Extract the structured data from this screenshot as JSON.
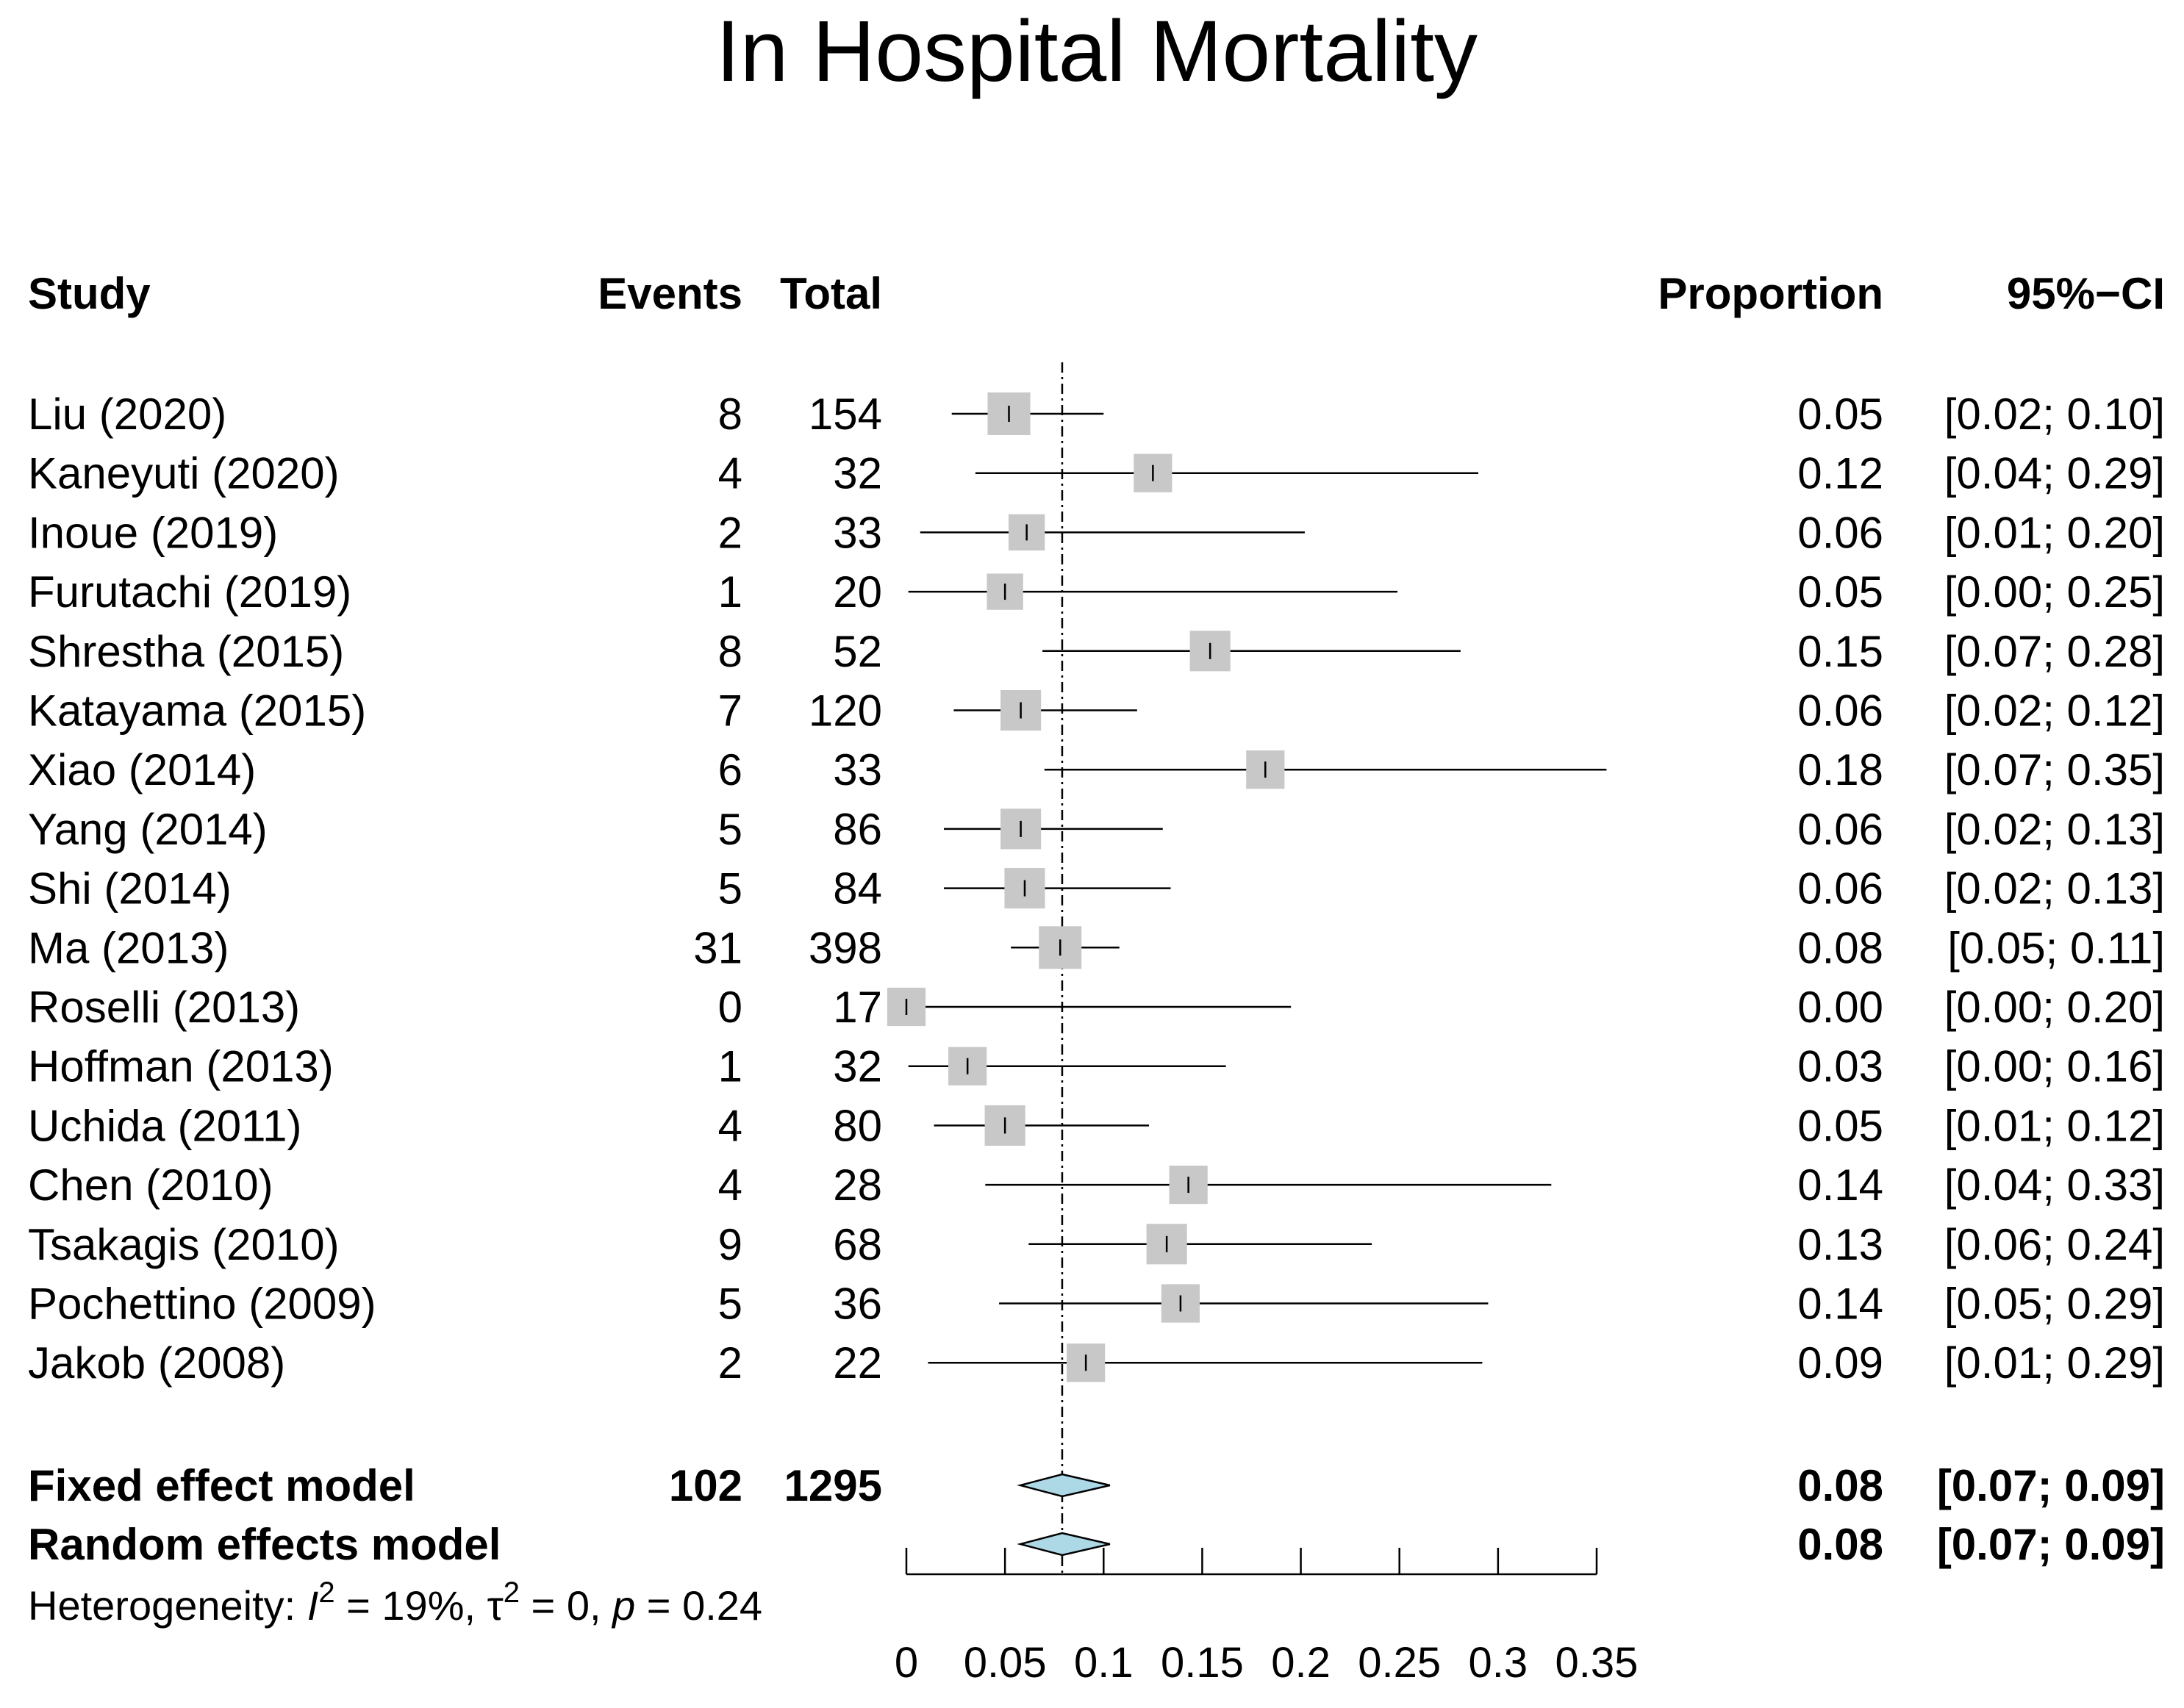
{
  "chart_data": {
    "type": "forest",
    "title": "In Hospital Mortality",
    "headers": {
      "study": "Study",
      "events": "Events",
      "total": "Total",
      "proportion": "Proportion",
      "ci": "95%−CI"
    },
    "studies": [
      {
        "study": "Liu (2020)",
        "events": "8",
        "total": "154",
        "proportion": "0.05",
        "ci_text": "[0.02; 0.10]",
        "est": 0.052,
        "lo": 0.023,
        "hi": 0.1,
        "weight": 1.0
      },
      {
        "study": "Kaneyuti (2020)",
        "events": "4",
        "total": "32",
        "proportion": "0.12",
        "ci_text": "[0.04; 0.29]",
        "est": 0.125,
        "lo": 0.035,
        "hi": 0.29,
        "weight": 0.9
      },
      {
        "study": "Inoue (2019)",
        "events": "2",
        "total": "33",
        "proportion": "0.06",
        "ci_text": "[0.01; 0.20]",
        "est": 0.061,
        "lo": 0.007,
        "hi": 0.202,
        "weight": 0.85
      },
      {
        "study": "Furutachi (2019)",
        "events": "1",
        "total": "20",
        "proportion": "0.05",
        "ci_text": "[0.00; 0.25]",
        "est": 0.05,
        "lo": 0.001,
        "hi": 0.249,
        "weight": 0.85
      },
      {
        "study": "Shrestha (2015)",
        "events": "8",
        "total": "52",
        "proportion": "0.15",
        "ci_text": "[0.07; 0.28]",
        "est": 0.154,
        "lo": 0.069,
        "hi": 0.281,
        "weight": 0.95
      },
      {
        "study": "Katayama (2015)",
        "events": "7",
        "total": "120",
        "proportion": "0.06",
        "ci_text": "[0.02; 0.12]",
        "est": 0.058,
        "lo": 0.024,
        "hi": 0.117,
        "weight": 0.95
      },
      {
        "study": "Xiao (2014)",
        "events": "6",
        "total": "33",
        "proportion": "0.18",
        "ci_text": "[0.07; 0.35]",
        "est": 0.182,
        "lo": 0.07,
        "hi": 0.355,
        "weight": 0.9
      },
      {
        "study": "Yang (2014)",
        "events": "5",
        "total": "86",
        "proportion": "0.06",
        "ci_text": "[0.02; 0.13]",
        "est": 0.058,
        "lo": 0.019,
        "hi": 0.13,
        "weight": 0.95
      },
      {
        "study": "Shi (2014)",
        "events": "5",
        "total": "84",
        "proportion": "0.06",
        "ci_text": "[0.02; 0.13]",
        "est": 0.06,
        "lo": 0.019,
        "hi": 0.134,
        "weight": 0.95
      },
      {
        "study": "Ma (2013)",
        "events": "31",
        "total": "398",
        "proportion": "0.08",
        "ci_text": "[0.05; 0.11]",
        "est": 0.078,
        "lo": 0.053,
        "hi": 0.108,
        "weight": 1.0
      },
      {
        "study": "Roselli (2013)",
        "events": "0",
        "total": "17",
        "proportion": "0.00",
        "ci_text": "[0.00; 0.20]",
        "est": 0.0,
        "lo": 0.0,
        "hi": 0.195,
        "weight": 0.9
      },
      {
        "study": "Hoffman (2013)",
        "events": "1",
        "total": "32",
        "proportion": "0.03",
        "ci_text": "[0.00; 0.16]",
        "est": 0.031,
        "lo": 0.001,
        "hi": 0.162,
        "weight": 0.9
      },
      {
        "study": "Uchida (2011)",
        "events": "4",
        "total": "80",
        "proportion": "0.05",
        "ci_text": "[0.01; 0.12]",
        "est": 0.05,
        "lo": 0.014,
        "hi": 0.123,
        "weight": 0.95
      },
      {
        "study": "Chen (2010)",
        "events": "4",
        "total": "28",
        "proportion": "0.14",
        "ci_text": "[0.04; 0.33]",
        "est": 0.143,
        "lo": 0.04,
        "hi": 0.327,
        "weight": 0.9
      },
      {
        "study": "Tsakagis (2010)",
        "events": "9",
        "total": "68",
        "proportion": "0.13",
        "ci_text": "[0.06; 0.24]",
        "est": 0.132,
        "lo": 0.062,
        "hi": 0.236,
        "weight": 0.95
      },
      {
        "study": "Pochettino (2009)",
        "events": "5",
        "total": "36",
        "proportion": "0.14",
        "ci_text": "[0.05; 0.29]",
        "est": 0.139,
        "lo": 0.047,
        "hi": 0.295,
        "weight": 0.9
      },
      {
        "study": "Jakob (2008)",
        "events": "2",
        "total": "22",
        "proportion": "0.09",
        "ci_text": "[0.01; 0.29]",
        "est": 0.091,
        "lo": 0.011,
        "hi": 0.292,
        "weight": 0.9
      }
    ],
    "fixed": {
      "label": "Fixed effect model",
      "events": "102",
      "total": "1295",
      "proportion": "0.08",
      "ci_text": "[0.07; 0.09]",
      "est": 0.079,
      "lo": 0.066,
      "hi": 0.095
    },
    "random": {
      "label": "Random effects model",
      "proportion": "0.08",
      "ci_text": "[0.07; 0.09]",
      "est": 0.079,
      "lo": 0.066,
      "hi": 0.095
    },
    "heterogeneity": {
      "prefix": "Heterogeneity: ",
      "i2_symbol": "I",
      "i2_value": " = 19%, ",
      "tau_symbol": "τ",
      "tau_value": " = 0, ",
      "p_symbol": "p",
      "p_value": " = 0.24"
    },
    "reference_line": 0.079,
    "xlim": [
      0,
      0.35
    ],
    "x_ticks": [
      0,
      0.05,
      0.1,
      0.15,
      0.2,
      0.25,
      0.3,
      0.35
    ],
    "x_tick_labels": [
      "0",
      "0.05",
      "0.1",
      "0.15",
      "0.2",
      "0.25",
      "0.3",
      "0.35"
    ],
    "colors": {
      "square": "#c8c8c8",
      "diamond": "#add8e6",
      "line": "#000000"
    }
  }
}
